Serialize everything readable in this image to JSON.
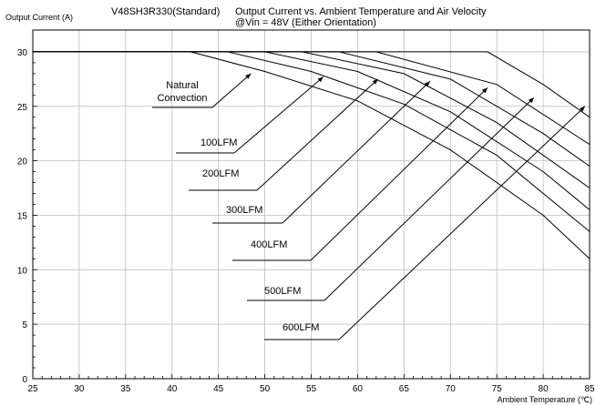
{
  "chart_data": {
    "type": "line",
    "model": "V48SH3R330(Standard)",
    "title": "Output Current vs. Ambient Temperature and Air Velocity",
    "subtitle": "@Vin = 48V (Either Orientation)",
    "ylabel": "Output Current (A)",
    "xlabel": "Ambient Temperature (℃)",
    "xlim": [
      25,
      85
    ],
    "ylim": [
      0,
      32
    ],
    "x_ticks": [
      25,
      30,
      35,
      40,
      45,
      50,
      55,
      60,
      65,
      70,
      75,
      80,
      85
    ],
    "y_ticks": [
      0,
      5,
      10,
      15,
      20,
      25,
      30
    ],
    "grid": true,
    "series": [
      {
        "name": "Natural Convection",
        "x": [
          25,
          42,
          50,
          60,
          70,
          80,
          85
        ],
        "y": [
          30,
          30,
          28.2,
          25.5,
          21,
          15,
          11
        ]
      },
      {
        "name": "100LFM",
        "x": [
          25,
          46,
          55,
          65,
          75,
          85
        ],
        "y": [
          30,
          30,
          28.2,
          25.2,
          20.5,
          13.5
        ]
      },
      {
        "name": "200LFM",
        "x": [
          25,
          50,
          60,
          70,
          80,
          85
        ],
        "y": [
          30,
          30,
          28.2,
          24.5,
          19,
          15.5
        ]
      },
      {
        "name": "300LFM",
        "x": [
          25,
          54,
          65,
          75,
          85
        ],
        "y": [
          30,
          30,
          28,
          23.5,
          17.5
        ]
      },
      {
        "name": "400LFM",
        "x": [
          25,
          58,
          70,
          80,
          85
        ],
        "y": [
          30,
          30,
          27.5,
          22.5,
          19.5
        ]
      },
      {
        "name": "500LFM",
        "x": [
          25,
          62,
          75,
          85
        ],
        "y": [
          30,
          30,
          27,
          21.5
        ]
      },
      {
        "name": "600LFM",
        "x": [
          25,
          74,
          80,
          85
        ],
        "y": [
          30,
          30,
          27,
          24
        ]
      }
    ],
    "annotations": [
      {
        "lines": [
          "Natural",
          "Convection"
        ],
        "arrow_to": [
          48.5,
          28
        ]
      },
      {
        "lines": [
          "100LFM"
        ],
        "arrow_to": [
          56.3,
          27.7
        ]
      },
      {
        "lines": [
          "200LFM"
        ],
        "arrow_to": [
          62.2,
          27.5
        ]
      },
      {
        "lines": [
          "300LFM"
        ],
        "arrow_to": [
          67.8,
          27.3
        ]
      },
      {
        "lines": [
          "400LFM"
        ],
        "arrow_to": [
          74,
          26.7
        ]
      },
      {
        "lines": [
          "500LFM"
        ],
        "arrow_to": [
          79,
          25.8
        ]
      },
      {
        "lines": [
          "600LFM"
        ],
        "arrow_to": [
          84.5,
          25
        ]
      }
    ]
  }
}
